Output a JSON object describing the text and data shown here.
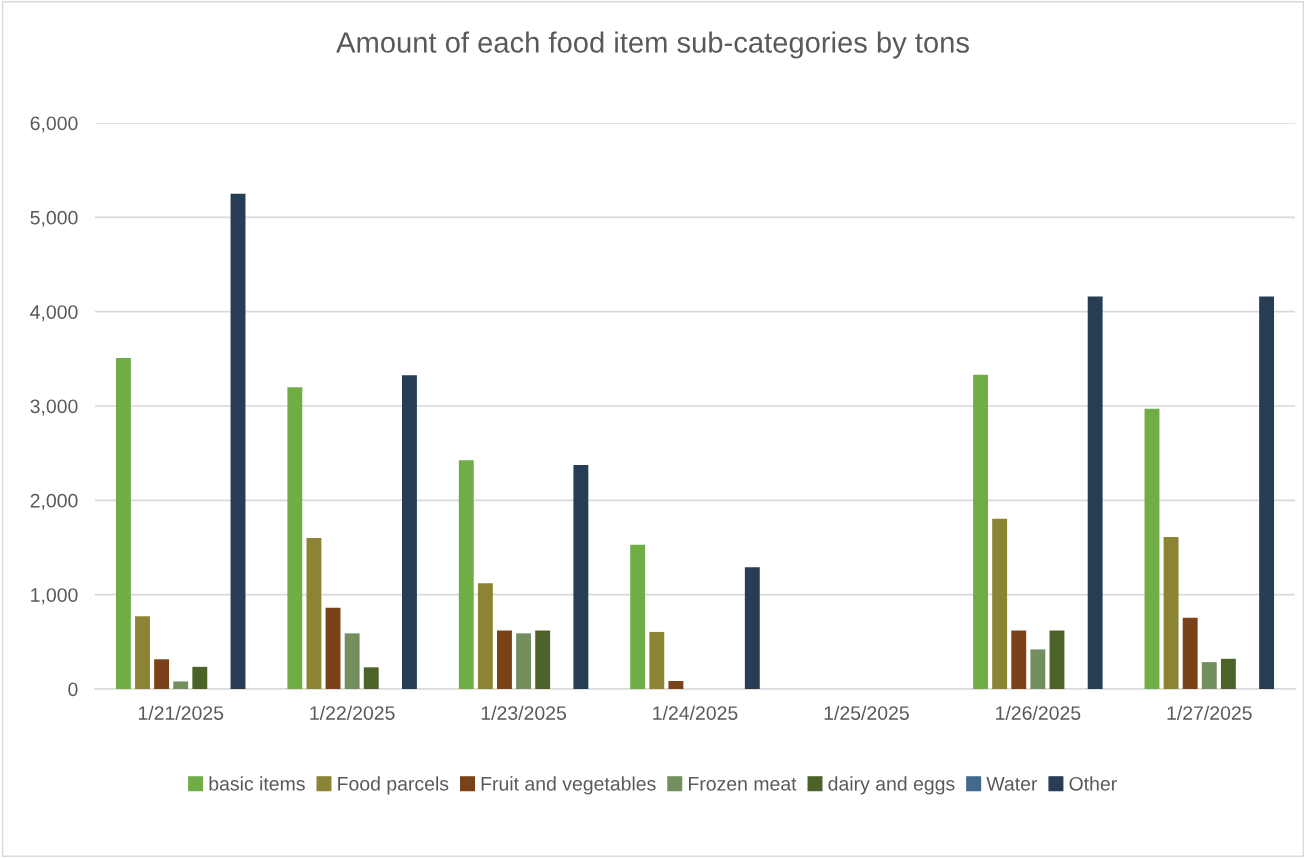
{
  "chart_data": {
    "type": "bar",
    "title": "Amount of each food item sub-categories by tons",
    "categories": [
      "1/21/2025",
      "1/22/2025",
      "1/23/2025",
      "1/24/2025",
      "1/25/2025",
      "1/26/2025",
      "1/27/2025"
    ],
    "series": [
      {
        "name": "basic items",
        "color": "#70ad47",
        "values": [
          3510,
          3200,
          2425,
          1530,
          0,
          3330,
          2970
        ]
      },
      {
        "name": "Food parcels",
        "color": "#8b8434",
        "values": [
          770,
          1600,
          1120,
          605,
          0,
          1805,
          1610
        ]
      },
      {
        "name": "Fruit and vegetables",
        "color": "#7b4119",
        "values": [
          315,
          860,
          620,
          85,
          0,
          620,
          755
        ]
      },
      {
        "name": "Frozen meat",
        "color": "#748f5e",
        "values": [
          80,
          590,
          590,
          0,
          0,
          420,
          285
        ]
      },
      {
        "name": "dairy and eggs",
        "color": "#4b6229",
        "values": [
          235,
          230,
          620,
          0,
          0,
          620,
          320
        ]
      },
      {
        "name": "Water",
        "color": "#43698f",
        "values": [
          0,
          0,
          0,
          0,
          0,
          0,
          0
        ]
      },
      {
        "name": "Other",
        "color": "#263d53",
        "values": [
          5250,
          3325,
          2375,
          1290,
          0,
          4160,
          4160
        ]
      }
    ],
    "ylim": [
      0,
      6000
    ],
    "yticks": [
      {
        "value": 0,
        "label": "0"
      },
      {
        "value": 1000,
        "label": "1,000"
      },
      {
        "value": 2000,
        "label": "2,000"
      },
      {
        "value": 3000,
        "label": "3,000"
      },
      {
        "value": 4000,
        "label": "4,000"
      },
      {
        "value": 5000,
        "label": "5,000"
      },
      {
        "value": 6000,
        "label": "6,000"
      }
    ],
    "grid": "y",
    "legend": "bottom"
  }
}
